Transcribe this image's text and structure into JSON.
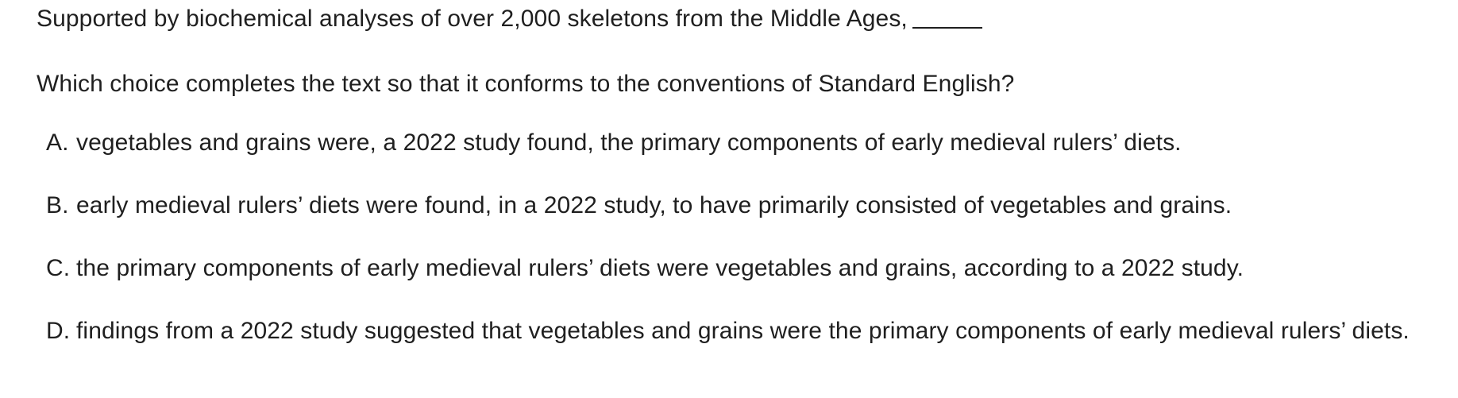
{
  "passage": "Supported by biochemical analyses of over 2,000 skeletons from the Middle Ages,",
  "question": "Which choice completes the text so that it conforms to the conventions of Standard English?",
  "choices": [
    {
      "letter": "A.",
      "text": "vegetables and grains were, a 2022 study found, the primary components of early medieval rulers’ diets."
    },
    {
      "letter": "B.",
      "text": "early medieval rulers’ diets were found, in a 2022 study, to have primarily consisted of vegetables and grains."
    },
    {
      "letter": "C.",
      "text": "the primary components of early medieval rulers’ diets were vegetables and grains, according to a 2022 study."
    },
    {
      "letter": "D.",
      "text": "findings from a 2022 study suggested that vegetables and grains were the primary components of early medieval rulers’ diets."
    }
  ]
}
